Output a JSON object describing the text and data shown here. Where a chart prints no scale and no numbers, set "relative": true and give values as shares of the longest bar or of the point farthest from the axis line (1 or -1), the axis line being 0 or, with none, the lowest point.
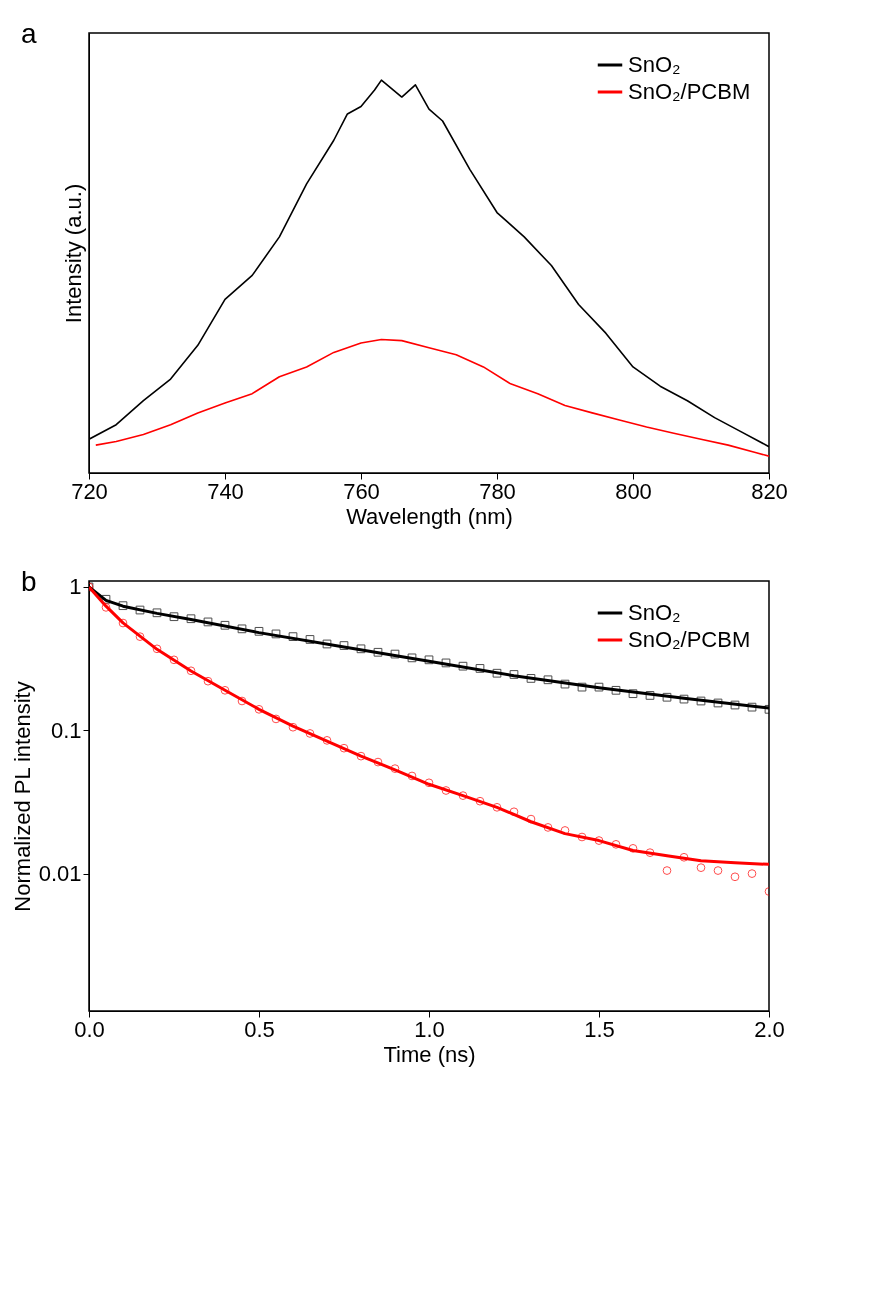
{
  "chart_data": [
    {
      "type": "line",
      "relative": true,
      "xlabel": "Wavelength (nm)",
      "ylabel": "Intensity (a.u.)",
      "annotations": [
        "a"
      ],
      "xlim": [
        720,
        820
      ],
      "xticks": [
        720,
        740,
        760,
        780,
        800,
        820
      ],
      "legend": "top right",
      "series": [
        {
          "name": "SnO₂",
          "color": "#000000",
          "x": [
            720,
            724,
            728,
            732,
            736,
            740,
            744,
            748,
            752,
            756,
            758,
            760,
            762,
            763,
            766,
            768,
            770,
            772,
            776,
            780,
            784,
            788,
            792,
            796,
            800,
            804,
            808,
            812,
            816,
            820
          ],
          "values": [
            0.086,
            0.123,
            0.184,
            0.239,
            0.325,
            0.442,
            0.503,
            0.601,
            0.736,
            0.847,
            0.914,
            0.933,
            0.975,
            1.0,
            0.957,
            0.988,
            0.926,
            0.896,
            0.773,
            0.663,
            0.601,
            0.528,
            0.429,
            0.356,
            0.27,
            0.221,
            0.184,
            0.141,
            0.104,
            0.067
          ]
        },
        {
          "name": "SnO₂/PCBM",
          "color": "#ff0000",
          "x": [
            721,
            724,
            728,
            732,
            736,
            740,
            744,
            748,
            752,
            756,
            760,
            763,
            766,
            770,
            774,
            778,
            782,
            786,
            790,
            794,
            798,
            802,
            806,
            810,
            814,
            818,
            820
          ],
          "values": [
            0.071,
            0.08,
            0.098,
            0.123,
            0.153,
            0.178,
            0.202,
            0.245,
            0.27,
            0.307,
            0.331,
            0.34,
            0.337,
            0.319,
            0.301,
            0.27,
            0.227,
            0.202,
            0.172,
            0.153,
            0.135,
            0.117,
            0.101,
            0.086,
            0.071,
            0.052,
            0.043
          ]
        }
      ]
    },
    {
      "type": "line",
      "log": true,
      "xlabel": "Time (ns)",
      "ylabel": "Normalized PL intensity",
      "annotations": [
        "b"
      ],
      "xlim": [
        0,
        2
      ],
      "xticks": [
        {
          "value": 0,
          "label": "0.0"
        },
        0.5,
        {
          "value": 1,
          "label": "1.0"
        },
        1.5,
        {
          "value": 2,
          "label": "2.0"
        }
      ],
      "ylim": [
        0.0011,
        1.1
      ],
      "yticks": [
        1,
        0.1,
        0.01
      ],
      "legend": "top right",
      "series": [
        {
          "type": "scatter",
          "marker": "square",
          "color": "#000000",
          "x": [
            0,
            0.05,
            0.1,
            0.15,
            0.2,
            0.25,
            0.3,
            0.35,
            0.4,
            0.45,
            0.5,
            0.55,
            0.6,
            0.65,
            0.7,
            0.75,
            0.8,
            0.85,
            0.9,
            0.95,
            1.0,
            1.05,
            1.1,
            1.15,
            1.2,
            1.25,
            1.3,
            1.35,
            1.4,
            1.45,
            1.5,
            1.55,
            1.6,
            1.65,
            1.7,
            1.75,
            1.8,
            1.85,
            1.9,
            1.95,
            2.0
          ],
          "values": [
            1.0,
            0.82,
            0.74,
            0.69,
            0.66,
            0.62,
            0.6,
            0.57,
            0.54,
            0.51,
            0.49,
            0.47,
            0.45,
            0.43,
            0.4,
            0.39,
            0.37,
            0.35,
            0.34,
            0.32,
            0.31,
            0.295,
            0.28,
            0.27,
            0.25,
            0.245,
            0.23,
            0.225,
            0.21,
            0.2,
            0.2,
            0.19,
            0.18,
            0.175,
            0.17,
            0.165,
            0.16,
            0.155,
            0.15,
            0.145,
            0.14
          ]
        },
        {
          "type": "scatter",
          "marker": "circle",
          "color": "#ff0000",
          "x": [
            0,
            0.05,
            0.1,
            0.15,
            0.2,
            0.25,
            0.3,
            0.35,
            0.4,
            0.45,
            0.5,
            0.55,
            0.6,
            0.65,
            0.7,
            0.75,
            0.8,
            0.85,
            0.9,
            0.95,
            1.0,
            1.05,
            1.1,
            1.15,
            1.2,
            1.25,
            1.3,
            1.35,
            1.4,
            1.45,
            1.5,
            1.55,
            1.6,
            1.65,
            1.7,
            1.75,
            1.8,
            1.85,
            1.9,
            1.95,
            2.0
          ],
          "values": [
            1.0,
            0.72,
            0.56,
            0.45,
            0.37,
            0.31,
            0.26,
            0.22,
            0.19,
            0.16,
            0.14,
            0.12,
            0.105,
            0.095,
            0.085,
            0.075,
            0.066,
            0.06,
            0.054,
            0.048,
            0.043,
            0.038,
            0.035,
            0.032,
            0.029,
            0.027,
            0.024,
            0.021,
            0.02,
            0.018,
            0.017,
            0.016,
            0.015,
            0.014,
            0.0105,
            0.013,
            0.011,
            0.0105,
            0.0095,
            0.01,
            0.0075
          ]
        },
        {
          "type": "line",
          "name": "SnO₂",
          "color": "#000000",
          "x": [
            0,
            0.05,
            0.1,
            0.2,
            0.3,
            0.5,
            0.75,
            1.0,
            1.25,
            1.5,
            1.75,
            2.0
          ],
          "values": [
            1.0,
            0.806,
            0.734,
            0.654,
            0.592,
            0.48,
            0.381,
            0.303,
            0.24,
            0.198,
            0.167,
            0.143
          ]
        },
        {
          "type": "line",
          "name": "SnO₂/PCBM",
          "color": "#ff0000",
          "x": [
            0,
            0.05,
            0.1,
            0.2,
            0.3,
            0.4,
            0.5,
            0.6,
            0.7,
            0.8,
            0.9,
            1.0,
            1.1,
            1.2,
            1.3,
            1.4,
            1.5,
            1.6,
            1.7,
            1.8,
            1.9,
            2.0
          ],
          "values": [
            1.0,
            0.734,
            0.561,
            0.367,
            0.259,
            0.19,
            0.14,
            0.107,
            0.084,
            0.066,
            0.053,
            0.042,
            0.035,
            0.029,
            0.023,
            0.019,
            0.017,
            0.0145,
            0.0133,
            0.0123,
            0.0119,
            0.0116
          ]
        }
      ]
    }
  ]
}
